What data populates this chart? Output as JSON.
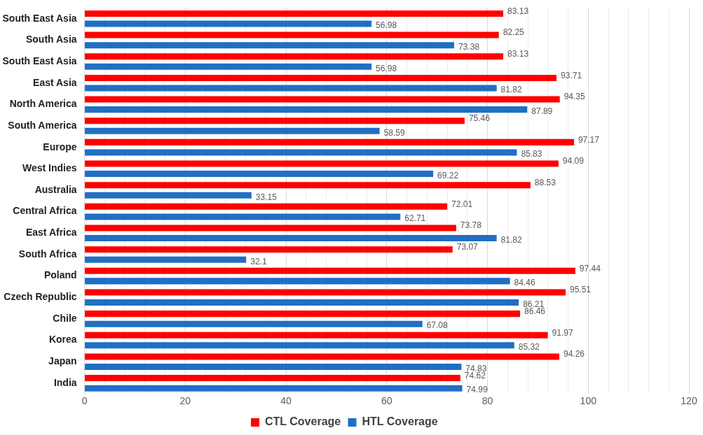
{
  "chart_data": {
    "type": "bar",
    "orientation": "horizontal",
    "categories": [
      "South East Asia",
      "South Asia",
      "South East Asia",
      "East Asia",
      "North America",
      "South America",
      "Europe",
      "West Indies",
      "Australia",
      "Central Africa",
      "East Africa",
      "South Africa",
      "Poland",
      "Czech Republic",
      "Chile",
      "Korea",
      "Japan",
      "India"
    ],
    "series": [
      {
        "name": "CTL Coverage",
        "color": "#ff0000",
        "values": [
          83.13,
          82.25,
          83.13,
          93.71,
          94.35,
          75.46,
          97.17,
          94.09,
          88.53,
          72.01,
          73.78,
          73.07,
          97.44,
          95.51,
          86.46,
          91.97,
          94.26,
          74.62
        ]
      },
      {
        "name": "HTL Coverage",
        "color": "#1f6fc4",
        "values": [
          56.98,
          73.38,
          56.98,
          81.82,
          87.89,
          58.59,
          85.83,
          69.22,
          33.15,
          62.71,
          81.82,
          32.1,
          84.46,
          86.21,
          67.08,
          85.32,
          74.83,
          74.99
        ]
      }
    ],
    "xlim": [
      0,
      120
    ],
    "xticks": [
      0,
      {
        "value": 4,
        "label": null
      },
      {
        "value": 8,
        "label": null
      },
      {
        "value": 12,
        "label": null
      },
      {
        "value": 16,
        "label": null
      },
      20,
      {
        "value": 24,
        "label": null
      },
      {
        "value": 28,
        "label": null
      },
      {
        "value": 32,
        "label": null
      },
      {
        "value": 36,
        "label": null
      },
      40,
      {
        "value": 44,
        "label": null
      },
      {
        "value": 48,
        "label": null
      },
      {
        "value": 52,
        "label": null
      },
      {
        "value": 56,
        "label": null
      },
      60,
      {
        "value": 64,
        "label": null
      },
      {
        "value": 68,
        "label": null
      },
      {
        "value": 72,
        "label": null
      },
      {
        "value": 76,
        "label": null
      },
      80,
      {
        "value": 84,
        "label": null
      },
      {
        "value": 88,
        "label": null
      },
      {
        "value": 92,
        "label": null
      },
      {
        "value": 96,
        "label": null
      },
      100,
      {
        "value": 104,
        "label": null
      },
      {
        "value": 108,
        "label": null
      },
      {
        "value": 112,
        "label": null
      },
      {
        "value": 116,
        "label": null
      },
      120
    ],
    "grid": "x",
    "legend": "bottom",
    "data_labels": true
  }
}
